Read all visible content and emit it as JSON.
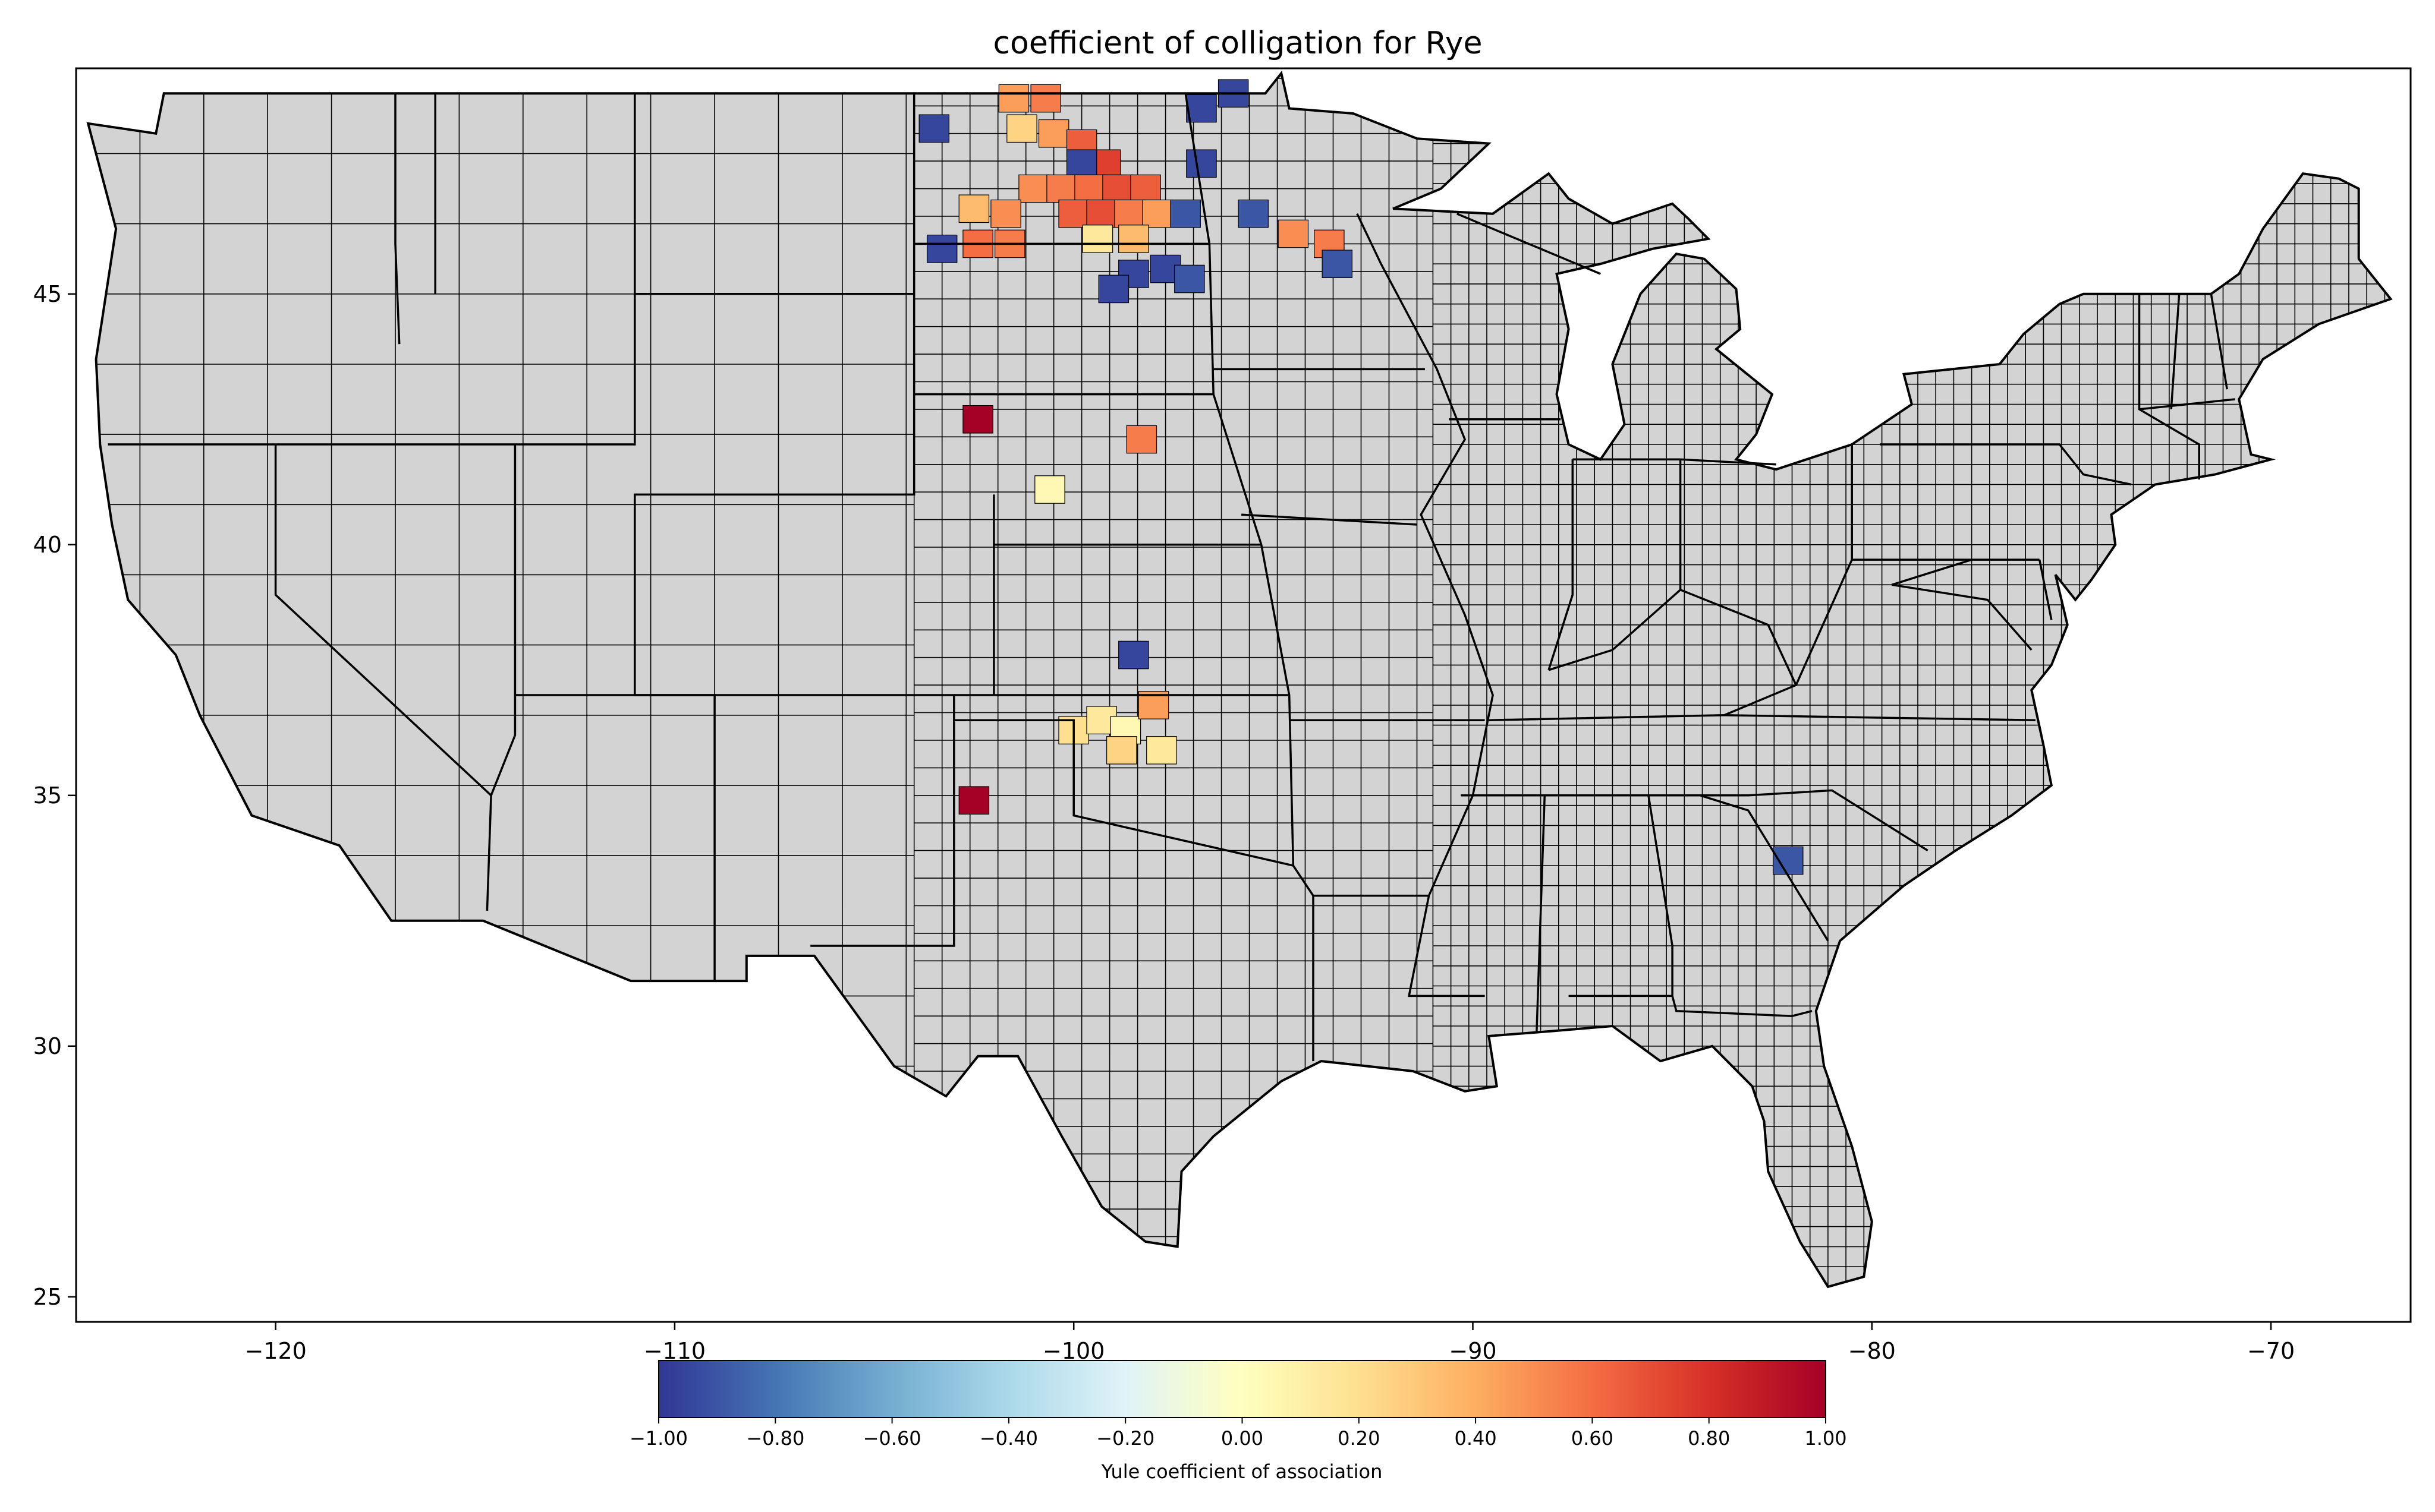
{
  "title": "coefficient of colligation for Rye",
  "axes": {
    "x_ticks": [
      {
        "value": -120,
        "label": "−120"
      },
      {
        "value": -110,
        "label": "−110"
      },
      {
        "value": -100,
        "label": "−100"
      },
      {
        "value": -90,
        "label": "−90"
      },
      {
        "value": -80,
        "label": "−80"
      },
      {
        "value": -70,
        "label": "−70"
      }
    ],
    "y_ticks": [
      {
        "value": 25,
        "label": "25"
      },
      {
        "value": 30,
        "label": "30"
      },
      {
        "value": 35,
        "label": "35"
      },
      {
        "value": 40,
        "label": "40"
      },
      {
        "value": 45,
        "label": "45"
      }
    ],
    "xlim": [
      -125,
      -66.5
    ],
    "ylim": [
      24.5,
      49.5
    ]
  },
  "colorbar": {
    "label": "Yule coefficient of association",
    "ticks": [
      "−1.00",
      "−0.80",
      "−0.60",
      "−0.40",
      "−0.20",
      "0.00",
      "0.20",
      "0.40",
      "0.60",
      "0.80",
      "1.00"
    ],
    "range": [
      -1.0,
      1.0
    ],
    "colormap": "RdYlBu_r",
    "colors": [
      "#313695",
      "#4575b4",
      "#74add1",
      "#abd9e9",
      "#e0f3f8",
      "#ffffbf",
      "#fee090",
      "#fdae61",
      "#f46d43",
      "#d73027",
      "#a50026"
    ]
  },
  "colors": {
    "land": "#d3d3d3",
    "county_border": "#000000",
    "background": "#ffffff"
  },
  "chart_data": {
    "type": "heatmap",
    "description_of_values": "Yule coefficient per highlighted county",
    "cells": [
      {
        "lon": -103.5,
        "lat": 48.3,
        "value": -0.95
      },
      {
        "lon": -101.5,
        "lat": 48.9,
        "value": 0.45
      },
      {
        "lon": -100.7,
        "lat": 48.9,
        "value": 0.55
      },
      {
        "lon": -101.3,
        "lat": 48.3,
        "value": 0.25
      },
      {
        "lon": -100.5,
        "lat": 48.2,
        "value": 0.45
      },
      {
        "lon": -99.8,
        "lat": 48.0,
        "value": 0.65
      },
      {
        "lon": -99.2,
        "lat": 47.6,
        "value": 0.75
      },
      {
        "lon": -99.8,
        "lat": 47.6,
        "value": -0.95
      },
      {
        "lon": -101.0,
        "lat": 47.1,
        "value": 0.5
      },
      {
        "lon": -100.3,
        "lat": 47.1,
        "value": 0.55
      },
      {
        "lon": -99.6,
        "lat": 47.1,
        "value": 0.6
      },
      {
        "lon": -98.9,
        "lat": 47.1,
        "value": 0.7
      },
      {
        "lon": -98.2,
        "lat": 47.1,
        "value": 0.65
      },
      {
        "lon": -101.7,
        "lat": 46.6,
        "value": 0.5
      },
      {
        "lon": -102.5,
        "lat": 46.7,
        "value": 0.35
      },
      {
        "lon": -100.0,
        "lat": 46.6,
        "value": 0.65
      },
      {
        "lon": -99.3,
        "lat": 46.6,
        "value": 0.7
      },
      {
        "lon": -98.6,
        "lat": 46.6,
        "value": 0.55
      },
      {
        "lon": -97.9,
        "lat": 46.6,
        "value": 0.45
      },
      {
        "lon": -97.2,
        "lat": 46.6,
        "value": -0.9
      },
      {
        "lon": -102.4,
        "lat": 46.0,
        "value": 0.6
      },
      {
        "lon": -101.6,
        "lat": 46.0,
        "value": 0.55
      },
      {
        "lon": -99.4,
        "lat": 46.1,
        "value": 0.15
      },
      {
        "lon": -98.5,
        "lat": 46.1,
        "value": 0.35
      },
      {
        "lon": -103.3,
        "lat": 45.9,
        "value": -0.95
      },
      {
        "lon": -97.7,
        "lat": 45.5,
        "value": -0.95
      },
      {
        "lon": -98.5,
        "lat": 45.4,
        "value": -0.95
      },
      {
        "lon": -97.1,
        "lat": 45.3,
        "value": -0.9
      },
      {
        "lon": -99.0,
        "lat": 45.1,
        "value": -0.95
      },
      {
        "lon": -96.8,
        "lat": 48.7,
        "value": -0.95
      },
      {
        "lon": -96.0,
        "lat": 49.0,
        "value": -0.95
      },
      {
        "lon": -96.8,
        "lat": 47.6,
        "value": -0.95
      },
      {
        "lon": -95.5,
        "lat": 46.6,
        "value": -0.9
      },
      {
        "lon": -94.5,
        "lat": 46.2,
        "value": 0.5
      },
      {
        "lon": -93.6,
        "lat": 46.0,
        "value": 0.55
      },
      {
        "lon": -93.4,
        "lat": 45.6,
        "value": -0.9
      },
      {
        "lon": -102.4,
        "lat": 42.5,
        "value": 1.0
      },
      {
        "lon": -98.3,
        "lat": 42.1,
        "value": 0.55
      },
      {
        "lon": -100.6,
        "lat": 41.1,
        "value": 0.05
      },
      {
        "lon": -98.5,
        "lat": 37.8,
        "value": -0.95
      },
      {
        "lon": -100.0,
        "lat": 36.3,
        "value": 0.2
      },
      {
        "lon": -99.3,
        "lat": 36.5,
        "value": 0.15
      },
      {
        "lon": -98.7,
        "lat": 36.3,
        "value": 0.05
      },
      {
        "lon": -98.0,
        "lat": 36.8,
        "value": 0.45
      },
      {
        "lon": -97.8,
        "lat": 35.9,
        "value": 0.15
      },
      {
        "lon": -98.8,
        "lat": 35.9,
        "value": 0.25
      },
      {
        "lon": -102.5,
        "lat": 34.9,
        "value": 1.0
      },
      {
        "lon": -82.1,
        "lat": 33.7,
        "value": -0.9
      }
    ]
  }
}
